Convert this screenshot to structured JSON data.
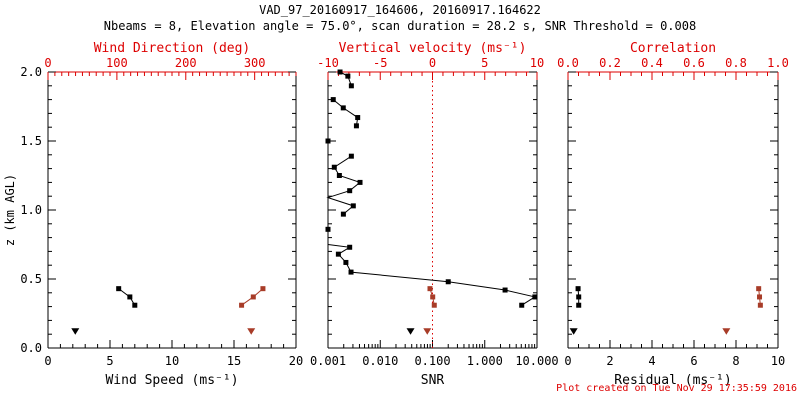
{
  "header": {
    "title": "VAD_97_20160917_164606, 20160917.164622",
    "subtitle": "Nbeams = 8, Elevation angle = 75.0°, scan duration = 28.2 s, SNR Threshold = 0.008"
  },
  "footer": {
    "text": "Plot created on Tue Nov 29 17:35:59 2016"
  },
  "colors": {
    "axis_accent": "#dd0000",
    "profile_black": "#000000",
    "profile_red": "#a83c28",
    "background": "#ffffff"
  },
  "y_axis": {
    "label": "z (km AGL)",
    "range": [
      0,
      2
    ],
    "tick_values": [
      0,
      0.5,
      1,
      1.5,
      2
    ],
    "tick_labels": [
      "0.0",
      "0.5",
      "1.0",
      "1.5",
      "2.0"
    ],
    "minor_step": 0.1
  },
  "chart_data": [
    {
      "name": "wind",
      "type": "scatter",
      "x_bottom": {
        "label": "Wind Speed (ms⁻¹)",
        "scale": "linear",
        "range": [
          0,
          20
        ],
        "tick_values": [
          0,
          5,
          10,
          15,
          20
        ],
        "tick_labels": [
          "0",
          "5",
          "10",
          "15",
          "20"
        ],
        "minor_step": 1
      },
      "x_top": {
        "label": "Wind Direction (deg)",
        "scale": "linear",
        "range": [
          0,
          360
        ],
        "tick_values": [
          0,
          100,
          200,
          300
        ],
        "tick_labels": [
          "0",
          "100",
          "200",
          "300"
        ],
        "minor_step": 10
      },
      "series": [
        {
          "name": "wind-speed-profile",
          "axis": "bottom",
          "color": "black",
          "marker": "square",
          "line": true,
          "points": [
            [
              7.0,
              0.31
            ],
            [
              6.6,
              0.37
            ],
            [
              5.7,
              0.43
            ]
          ]
        },
        {
          "name": "wind-speed-lowgate",
          "axis": "bottom",
          "color": "black",
          "marker": "triangle-down",
          "line": false,
          "points": [
            [
              2.2,
              0.125
            ]
          ]
        },
        {
          "name": "wind-direction-profile",
          "axis": "top",
          "color": "red",
          "marker": "square",
          "line": true,
          "points": [
            [
              281,
              0.31
            ],
            [
              298,
              0.37
            ],
            [
              312,
              0.43
            ]
          ]
        },
        {
          "name": "wind-direction-lowgate",
          "axis": "top",
          "color": "red",
          "marker": "triangle-down",
          "line": false,
          "points": [
            [
              295,
              0.125
            ]
          ]
        }
      ]
    },
    {
      "name": "snr",
      "type": "scatter",
      "x_bottom": {
        "label": "SNR",
        "scale": "log",
        "range": [
          0.001,
          10
        ],
        "tick_values": [
          0.001,
          0.01,
          0.1,
          1,
          10
        ],
        "tick_labels": [
          "0.001",
          "0.010",
          "0.100",
          "1.000",
          "10.000"
        ]
      },
      "x_top": {
        "label": "Vertical velocity (ms⁻¹)",
        "scale": "linear",
        "range": [
          -10,
          10
        ],
        "tick_values": [
          -10,
          -5,
          0,
          5,
          10
        ],
        "tick_labels": [
          "-10",
          "-5",
          "0",
          "5",
          "10"
        ],
        "minor_step": 1
      },
      "reference_line": {
        "axis": "top",
        "value": 0,
        "style": "dotted",
        "color": "red"
      },
      "series": [
        {
          "name": "snr-profile-upper",
          "axis": "bottom",
          "color": "black",
          "marker": "square",
          "line": true,
          "points": [
            [
              0.0017,
              2.0
            ],
            [
              0.0024,
              1.97
            ],
            [
              0.0028,
              1.9
            ]
          ]
        },
        {
          "name": "snr-profile-2",
          "axis": "bottom",
          "color": "black",
          "marker": "square",
          "line": true,
          "points": [
            [
              0.00126,
              1.8
            ],
            [
              0.00196,
              1.74
            ],
            [
              0.0037,
              1.67
            ],
            [
              0.0035,
              1.61
            ]
          ]
        },
        {
          "name": "snr-point-1p5",
          "axis": "bottom",
          "color": "black",
          "marker": "square",
          "line": false,
          "points": [
            [
              0.001,
              1.5
            ]
          ]
        },
        {
          "name": "snr-profile-3",
          "axis": "bottom",
          "color": "black",
          "marker": "square",
          "line": true,
          "points": [
            [
              0.0028,
              1.39
            ],
            [
              0.00132,
              1.31
            ],
            [
              0.00165,
              1.25
            ],
            [
              0.0041,
              1.2
            ],
            [
              0.0026,
              1.14
            ],
            [
              0.0009,
              1.09
            ],
            [
              0.00305,
              1.03
            ],
            [
              0.00197,
              0.97
            ]
          ]
        },
        {
          "name": "snr-point-0p86",
          "axis": "bottom",
          "color": "black",
          "marker": "square",
          "line": false,
          "points": [
            [
              0.001,
              0.86
            ]
          ]
        },
        {
          "name": "snr-profile-lower",
          "axis": "bottom",
          "color": "black",
          "marker": "square",
          "line": true,
          "points": [
            [
              0.0009,
              0.75
            ],
            [
              0.0026,
              0.73
            ],
            [
              0.00158,
              0.68
            ],
            [
              0.0022,
              0.62
            ],
            [
              0.00276,
              0.55
            ],
            [
              0.2,
              0.48
            ],
            [
              2.45,
              0.42
            ],
            [
              9.1,
              0.37
            ],
            [
              5.1,
              0.31
            ]
          ]
        },
        {
          "name": "snr-lowgate",
          "axis": "bottom",
          "color": "black",
          "marker": "triangle-down",
          "line": false,
          "points": [
            [
              0.038,
              0.125
            ]
          ]
        },
        {
          "name": "vertical-velocity-profile",
          "axis": "top",
          "color": "red",
          "marker": "square",
          "line": true,
          "points": [
            [
              0.17,
              0.31
            ],
            [
              0.02,
              0.37
            ],
            [
              -0.24,
              0.43
            ]
          ]
        },
        {
          "name": "vertical-velocity-lowgate",
          "axis": "top",
          "color": "red",
          "marker": "triangle-down",
          "line": false,
          "points": [
            [
              -0.5,
              0.125
            ]
          ]
        }
      ]
    },
    {
      "name": "residual",
      "type": "scatter",
      "x_bottom": {
        "label": "Residual (ms⁻¹)",
        "scale": "linear",
        "range": [
          0,
          10
        ],
        "tick_values": [
          0,
          2,
          4,
          6,
          8,
          10
        ],
        "tick_labels": [
          "0",
          "2",
          "4",
          "6",
          "8",
          "10"
        ],
        "minor_step": 0.5
      },
      "x_top": {
        "label": "Correlation",
        "scale": "linear",
        "range": [
          0,
          1
        ],
        "tick_values": [
          0,
          0.2,
          0.4,
          0.6,
          0.8,
          1
        ],
        "tick_labels": [
          "0.0",
          "0.2",
          "0.4",
          "0.6",
          "0.8",
          "1.0"
        ],
        "minor_step": 0.05
      },
      "series": [
        {
          "name": "residual-profile",
          "axis": "bottom",
          "color": "black",
          "marker": "square",
          "line": true,
          "points": [
            [
              0.51,
              0.31
            ],
            [
              0.51,
              0.37
            ],
            [
              0.48,
              0.43
            ]
          ]
        },
        {
          "name": "residual-lowgate",
          "axis": "bottom",
          "color": "black",
          "marker": "triangle-down",
          "line": false,
          "points": [
            [
              0.27,
              0.125
            ]
          ]
        },
        {
          "name": "correlation-profile",
          "axis": "top",
          "color": "red",
          "marker": "square",
          "line": true,
          "points": [
            [
              0.916,
              0.31
            ],
            [
              0.912,
              0.37
            ],
            [
              0.908,
              0.43
            ]
          ]
        },
        {
          "name": "correlation-lowgate",
          "axis": "top",
          "color": "red",
          "marker": "triangle-down",
          "line": false,
          "points": [
            [
              0.754,
              0.125
            ]
          ]
        }
      ]
    }
  ]
}
